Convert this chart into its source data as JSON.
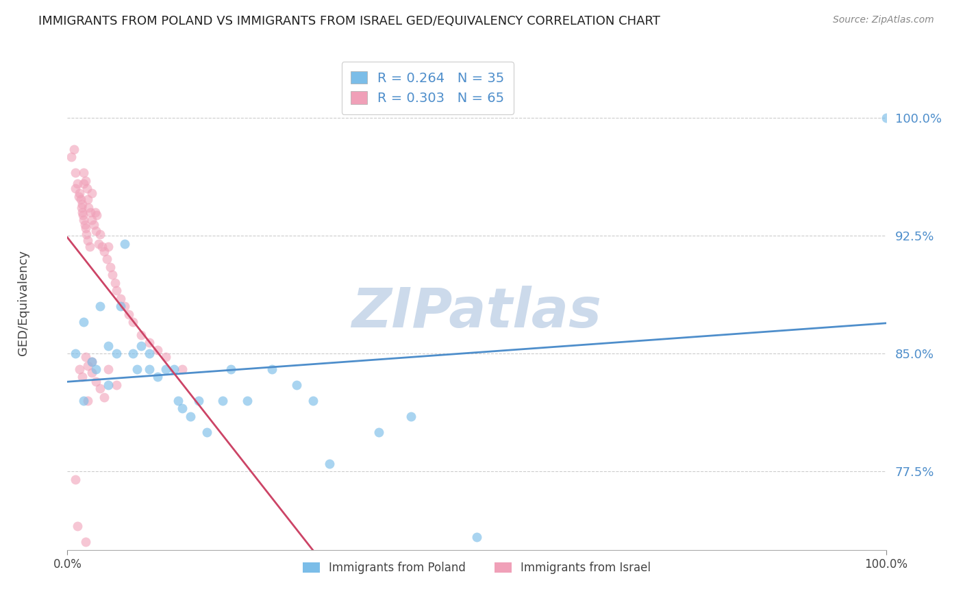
{
  "title": "IMMIGRANTS FROM POLAND VS IMMIGRANTS FROM ISRAEL GED/EQUIVALENCY CORRELATION CHART",
  "source": "Source: ZipAtlas.com",
  "ylabel": "GED/Equivalency",
  "r_poland": 0.264,
  "n_poland": 35,
  "r_israel": 0.303,
  "n_israel": 65,
  "legend_label_poland": "Immigrants from Poland",
  "legend_label_israel": "Immigrants from Israel",
  "color_poland": "#7bbde8",
  "color_israel": "#f0a0b8",
  "trendline_poland": "#4e8ecb",
  "trendline_israel": "#cc4466",
  "ytick_labels": [
    "77.5%",
    "85.0%",
    "92.5%",
    "100.0%"
  ],
  "ytick_values": [
    0.775,
    0.85,
    0.925,
    1.0
  ],
  "xlim": [
    0.0,
    1.0
  ],
  "ylim": [
    0.725,
    1.04
  ],
  "poland_x": [
    0.01,
    0.02,
    0.02,
    0.03,
    0.035,
    0.04,
    0.05,
    0.05,
    0.06,
    0.065,
    0.07,
    0.08,
    0.085,
    0.09,
    0.1,
    0.1,
    0.11,
    0.12,
    0.13,
    0.135,
    0.14,
    0.15,
    0.16,
    0.17,
    0.19,
    0.2,
    0.22,
    0.25,
    0.28,
    0.3,
    0.32,
    0.38,
    0.42,
    0.5,
    1.0
  ],
  "poland_y": [
    0.85,
    0.87,
    0.82,
    0.845,
    0.84,
    0.88,
    0.855,
    0.83,
    0.85,
    0.88,
    0.92,
    0.85,
    0.84,
    0.855,
    0.84,
    0.85,
    0.835,
    0.84,
    0.84,
    0.82,
    0.815,
    0.81,
    0.82,
    0.8,
    0.82,
    0.84,
    0.82,
    0.84,
    0.83,
    0.82,
    0.78,
    0.8,
    0.81,
    0.733,
    1.0
  ],
  "israel_x": [
    0.005,
    0.008,
    0.01,
    0.01,
    0.012,
    0.014,
    0.015,
    0.016,
    0.017,
    0.018,
    0.018,
    0.019,
    0.02,
    0.02,
    0.02,
    0.021,
    0.022,
    0.022,
    0.023,
    0.024,
    0.025,
    0.025,
    0.026,
    0.027,
    0.028,
    0.03,
    0.03,
    0.032,
    0.034,
    0.035,
    0.036,
    0.038,
    0.04,
    0.042,
    0.045,
    0.048,
    0.05,
    0.052,
    0.055,
    0.058,
    0.06,
    0.065,
    0.07,
    0.075,
    0.08,
    0.09,
    0.1,
    0.11,
    0.12,
    0.14,
    0.015,
    0.018,
    0.022,
    0.025,
    0.03,
    0.035,
    0.04,
    0.045,
    0.05,
    0.06,
    0.01,
    0.012,
    0.022,
    0.025,
    0.03
  ],
  "israel_y": [
    0.975,
    0.98,
    0.965,
    0.955,
    0.958,
    0.95,
    0.952,
    0.948,
    0.943,
    0.945,
    0.94,
    0.938,
    0.965,
    0.958,
    0.935,
    0.932,
    0.96,
    0.93,
    0.926,
    0.955,
    0.948,
    0.922,
    0.943,
    0.918,
    0.94,
    0.952,
    0.935,
    0.932,
    0.94,
    0.928,
    0.938,
    0.92,
    0.926,
    0.918,
    0.915,
    0.91,
    0.918,
    0.905,
    0.9,
    0.895,
    0.89,
    0.885,
    0.88,
    0.875,
    0.87,
    0.862,
    0.857,
    0.852,
    0.848,
    0.84,
    0.84,
    0.835,
    0.848,
    0.842,
    0.838,
    0.832,
    0.828,
    0.822,
    0.84,
    0.83,
    0.77,
    0.74,
    0.73,
    0.82,
    0.845
  ]
}
